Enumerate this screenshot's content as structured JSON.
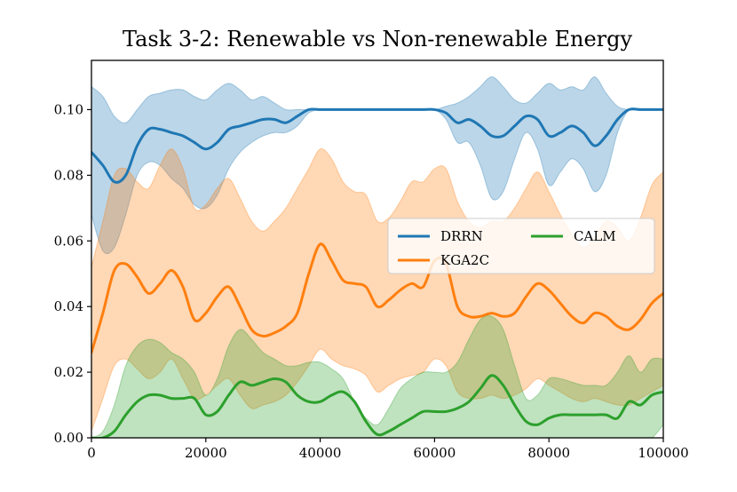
{
  "chart_data": {
    "type": "line",
    "title": "Task 3-2: Renewable vs Non-renewable Energy",
    "xlabel": "",
    "ylabel": "",
    "xlim": [
      0,
      100000
    ],
    "ylim": [
      0,
      0.115
    ],
    "x_ticks": [
      0,
      20000,
      40000,
      60000,
      80000,
      100000
    ],
    "x_tick_labels": [
      "0",
      "20000",
      "40000",
      "60000",
      "80000",
      "100000"
    ],
    "y_ticks": [
      0.0,
      0.02,
      0.04,
      0.06,
      0.08,
      0.1
    ],
    "y_tick_labels": [
      "0.00",
      "0.02",
      "0.04",
      "0.06",
      "0.08",
      "0.10"
    ],
    "grid": false,
    "legend_position": "center-right",
    "x": [
      0,
      2000,
      4000,
      6000,
      8000,
      10000,
      12000,
      14000,
      16000,
      18000,
      20000,
      22000,
      24000,
      26000,
      28000,
      30000,
      32000,
      34000,
      36000,
      38000,
      40000,
      42000,
      44000,
      46000,
      48000,
      50000,
      52000,
      54000,
      56000,
      58000,
      60000,
      62000,
      64000,
      66000,
      68000,
      70000,
      72000,
      74000,
      76000,
      78000,
      80000,
      82000,
      84000,
      86000,
      88000,
      90000,
      92000,
      94000,
      96000,
      98000,
      100000
    ],
    "series": [
      {
        "name": "DRRN",
        "color": "#1f77b4",
        "values": [
          0.087,
          0.083,
          0.078,
          0.08,
          0.089,
          0.094,
          0.094,
          0.093,
          0.092,
          0.09,
          0.088,
          0.09,
          0.094,
          0.095,
          0.096,
          0.097,
          0.097,
          0.096,
          0.098,
          0.1,
          0.1,
          0.1,
          0.1,
          0.1,
          0.1,
          0.1,
          0.1,
          0.1,
          0.1,
          0.1,
          0.1,
          0.099,
          0.096,
          0.097,
          0.095,
          0.092,
          0.092,
          0.095,
          0.098,
          0.097,
          0.092,
          0.093,
          0.095,
          0.093,
          0.089,
          0.092,
          0.097,
          0.1,
          0.1,
          0.1,
          0.1
        ],
        "lower": [
          0.068,
          0.057,
          0.058,
          0.068,
          0.08,
          0.084,
          0.083,
          0.079,
          0.076,
          0.071,
          0.07,
          0.074,
          0.082,
          0.087,
          0.09,
          0.092,
          0.093,
          0.093,
          0.095,
          0.099,
          0.1,
          0.1,
          0.1,
          0.1,
          0.1,
          0.1,
          0.1,
          0.1,
          0.1,
          0.1,
          0.1,
          0.097,
          0.09,
          0.09,
          0.083,
          0.073,
          0.075,
          0.085,
          0.093,
          0.088,
          0.077,
          0.081,
          0.085,
          0.082,
          0.075,
          0.08,
          0.093,
          0.1,
          0.1,
          0.1,
          0.1
        ],
        "upper": [
          0.107,
          0.104,
          0.098,
          0.096,
          0.1,
          0.104,
          0.105,
          0.106,
          0.106,
          0.104,
          0.103,
          0.106,
          0.108,
          0.106,
          0.103,
          0.104,
          0.102,
          0.1,
          0.1,
          0.1,
          0.1,
          0.1,
          0.1,
          0.1,
          0.1,
          0.1,
          0.1,
          0.1,
          0.1,
          0.1,
          0.1,
          0.101,
          0.102,
          0.104,
          0.107,
          0.11,
          0.107,
          0.103,
          0.102,
          0.105,
          0.108,
          0.106,
          0.107,
          0.106,
          0.11,
          0.105,
          0.101,
          0.1,
          0.1,
          0.1,
          0.1
        ]
      },
      {
        "name": "KGA2C",
        "color": "#ff7f0e",
        "values": [
          0.026,
          0.038,
          0.051,
          0.053,
          0.049,
          0.044,
          0.047,
          0.051,
          0.046,
          0.036,
          0.038,
          0.043,
          0.046,
          0.04,
          0.033,
          0.031,
          0.032,
          0.034,
          0.038,
          0.05,
          0.059,
          0.054,
          0.048,
          0.047,
          0.046,
          0.04,
          0.042,
          0.045,
          0.047,
          0.046,
          0.054,
          0.053,
          0.04,
          0.037,
          0.037,
          0.038,
          0.037,
          0.038,
          0.043,
          0.047,
          0.045,
          0.041,
          0.037,
          0.035,
          0.038,
          0.037,
          0.034,
          0.033,
          0.036,
          0.041,
          0.044
        ],
        "lower": [
          0.002,
          0.012,
          0.022,
          0.024,
          0.021,
          0.018,
          0.02,
          0.024,
          0.018,
          0.012,
          0.013,
          0.016,
          0.018,
          0.013,
          0.009,
          0.01,
          0.011,
          0.013,
          0.017,
          0.022,
          0.027,
          0.024,
          0.022,
          0.021,
          0.019,
          0.014,
          0.016,
          0.018,
          0.019,
          0.02,
          0.024,
          0.022,
          0.014,
          0.012,
          0.012,
          0.013,
          0.012,
          0.013,
          0.015,
          0.018,
          0.016,
          0.014,
          0.012,
          0.011,
          0.012,
          0.011,
          0.01,
          0.01,
          0.012,
          0.014,
          0.016
        ],
        "upper": [
          0.052,
          0.066,
          0.08,
          0.082,
          0.078,
          0.076,
          0.083,
          0.088,
          0.082,
          0.07,
          0.071,
          0.076,
          0.079,
          0.073,
          0.066,
          0.063,
          0.066,
          0.07,
          0.076,
          0.082,
          0.088,
          0.085,
          0.078,
          0.075,
          0.074,
          0.066,
          0.067,
          0.072,
          0.078,
          0.078,
          0.082,
          0.082,
          0.072,
          0.066,
          0.064,
          0.066,
          0.066,
          0.07,
          0.076,
          0.081,
          0.075,
          0.068,
          0.062,
          0.058,
          0.061,
          0.066,
          0.064,
          0.06,
          0.067,
          0.077,
          0.081
        ]
      },
      {
        "name": "CALM",
        "color": "#2ca02c",
        "values": [
          0.0,
          0.0,
          0.002,
          0.007,
          0.011,
          0.013,
          0.013,
          0.012,
          0.012,
          0.012,
          0.007,
          0.008,
          0.013,
          0.017,
          0.016,
          0.017,
          0.018,
          0.017,
          0.013,
          0.011,
          0.011,
          0.013,
          0.014,
          0.011,
          0.005,
          0.001,
          0.002,
          0.004,
          0.006,
          0.008,
          0.008,
          0.008,
          0.009,
          0.011,
          0.015,
          0.019,
          0.016,
          0.01,
          0.005,
          0.004,
          0.006,
          0.007,
          0.007,
          0.007,
          0.007,
          0.007,
          0.006,
          0.011,
          0.01,
          0.013,
          0.014
        ],
        "lower": [
          0.0,
          0.0,
          0.0,
          0.0,
          0.0,
          0.0,
          0.0,
          0.0,
          0.0,
          0.0,
          0.0,
          0.0,
          0.0,
          0.0,
          0.0,
          0.0,
          0.0,
          0.0,
          0.0,
          0.0,
          0.0,
          0.0,
          0.0,
          0.0,
          0.0,
          0.0,
          0.0,
          0.0,
          0.0,
          0.0,
          0.0,
          0.0,
          0.0,
          0.0,
          0.0,
          0.0,
          0.0,
          0.0,
          0.0,
          0.0,
          0.0,
          0.0,
          0.0,
          0.0,
          0.0,
          0.0,
          0.0,
          0.0,
          0.0,
          0.0,
          0.004
        ],
        "upper": [
          0.0,
          0.002,
          0.01,
          0.022,
          0.028,
          0.03,
          0.029,
          0.026,
          0.024,
          0.02,
          0.013,
          0.018,
          0.028,
          0.033,
          0.03,
          0.026,
          0.024,
          0.022,
          0.022,
          0.023,
          0.023,
          0.021,
          0.018,
          0.011,
          0.006,
          0.004,
          0.009,
          0.015,
          0.018,
          0.02,
          0.02,
          0.02,
          0.023,
          0.03,
          0.036,
          0.037,
          0.033,
          0.022,
          0.012,
          0.013,
          0.018,
          0.018,
          0.017,
          0.016,
          0.016,
          0.016,
          0.02,
          0.025,
          0.02,
          0.024,
          0.024
        ]
      }
    ]
  }
}
